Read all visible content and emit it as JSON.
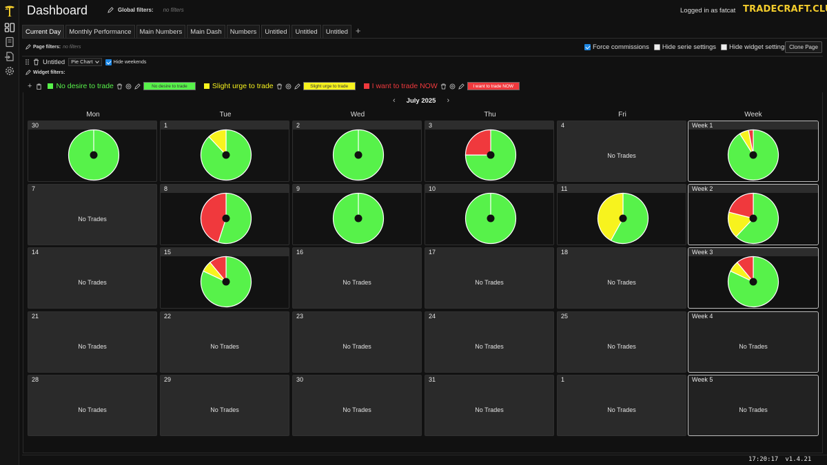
{
  "header": {
    "title": "Dashboard",
    "global_filters_label": "Global filters:",
    "global_filters_value": "no filters",
    "logged_in": "Logged in as fatcat",
    "brand": "TRADECRAFT.CLUB"
  },
  "tabs": [
    {
      "label": "Current Day",
      "active": true
    },
    {
      "label": "Monthly Performance",
      "active": false
    },
    {
      "label": "Main Numbers",
      "active": false
    },
    {
      "label": "Main Dash",
      "active": false
    },
    {
      "label": "Numbers",
      "active": false
    },
    {
      "label": "Untitled",
      "active": false
    },
    {
      "label": "Untitled",
      "active": false
    },
    {
      "label": "Untitled",
      "active": false
    }
  ],
  "tab_add": "+",
  "page_filters": {
    "label": "Page filters:",
    "value": "no filters"
  },
  "options": {
    "force_commissions": {
      "label": "Force commissions",
      "checked": true
    },
    "hide_serie_settings": {
      "label": "Hide serie settings",
      "checked": false
    },
    "hide_widget_settings": {
      "label": "Hide widget settings",
      "checked": false
    },
    "clone_page": "Clone Page"
  },
  "widget": {
    "name": "Untitled",
    "chart_type": "Pie Chart",
    "hide_weekends": {
      "label": "Hide weekends",
      "checked": true
    },
    "filters_label": "Widget filters:"
  },
  "series": [
    {
      "name": "No desire to trade",
      "color": "#57f24a",
      "chip": "No desire to trade"
    },
    {
      "name": "Slight urge to trade",
      "color": "#f7f31e",
      "chip": "Slight urge to trade"
    },
    {
      "name": "I want to trade NOW",
      "color": "#f0393d",
      "chip": "I want to trade NOW"
    }
  ],
  "calendar": {
    "month": "July 2025",
    "prev": "‹",
    "next": "›",
    "weekdays": [
      "Mon",
      "Tue",
      "Wed",
      "Thu",
      "Fri",
      "Week"
    ],
    "no_trades": "No Trades",
    "rows": [
      {
        "days": [
          {
            "label": "30",
            "pie": [
              1,
              0,
              0
            ]
          },
          {
            "label": "1",
            "pie": [
              0.88,
              0.12,
              0
            ]
          },
          {
            "label": "2",
            "pie": [
              1,
              0,
              0
            ]
          },
          {
            "label": "3",
            "pie": [
              0.75,
              0,
              0.25
            ]
          },
          {
            "label": "4",
            "pie": null
          }
        ],
        "week": {
          "label": "Week 1",
          "pie": [
            0.91,
            0.06,
            0.03
          ]
        }
      },
      {
        "days": [
          {
            "label": "7",
            "pie": null
          },
          {
            "label": "8",
            "pie": [
              0.55,
              0,
              0.45
            ]
          },
          {
            "label": "9",
            "pie": [
              1,
              0,
              0
            ]
          },
          {
            "label": "10",
            "pie": [
              1,
              0,
              0
            ]
          },
          {
            "label": "11",
            "pie": [
              0.58,
              0.42,
              0
            ]
          }
        ],
        "week": {
          "label": "Week 2",
          "pie": [
            0.62,
            0.17,
            0.21
          ]
        }
      },
      {
        "days": [
          {
            "label": "14",
            "pie": null
          },
          {
            "label": "15",
            "pie": [
              0.82,
              0.07,
              0.11
            ]
          },
          {
            "label": "16",
            "pie": null
          },
          {
            "label": "17",
            "pie": null
          },
          {
            "label": "18",
            "pie": null
          }
        ],
        "week": {
          "label": "Week 3",
          "pie": [
            0.82,
            0.07,
            0.11
          ]
        }
      },
      {
        "days": [
          {
            "label": "21",
            "pie": null
          },
          {
            "label": "22",
            "pie": null
          },
          {
            "label": "23",
            "pie": null
          },
          {
            "label": "24",
            "pie": null
          },
          {
            "label": "25",
            "pie": null
          }
        ],
        "week": {
          "label": "Week 4",
          "pie": null
        }
      },
      {
        "days": [
          {
            "label": "28",
            "pie": null
          },
          {
            "label": "29",
            "pie": null
          },
          {
            "label": "30",
            "pie": null
          },
          {
            "label": "31",
            "pie": null
          },
          {
            "label": "1",
            "pie": null
          }
        ],
        "week": {
          "label": "Week 5",
          "pie": null
        }
      }
    ]
  },
  "footer": {
    "time": "17:20:17",
    "version": "v1.4.21"
  }
}
